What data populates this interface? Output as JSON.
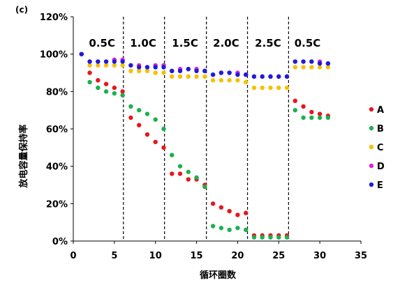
{
  "panel_label": "(c)",
  "chart_data": {
    "type": "scatter",
    "xlabel": "循环圈数",
    "ylabel": "放电容量保持率",
    "xlim": [
      0,
      35
    ],
    "ylim": [
      0,
      120
    ],
    "x_ticks": [
      "0",
      "5",
      "10",
      "15",
      "20",
      "25",
      "30",
      "35"
    ],
    "y_ticks": [
      "0%",
      "20%",
      "40%",
      "60%",
      "80%",
      "100%",
      "120%"
    ],
    "rate_dividers": [
      6.1,
      11.1,
      16.2,
      21.2,
      26.2
    ],
    "rate_labels": [
      {
        "text": "0.5C",
        "x": 3.5
      },
      {
        "text": "1.0C",
        "x": 8.5
      },
      {
        "text": "1.5C",
        "x": 13.6
      },
      {
        "text": "2.0C",
        "x": 18.6
      },
      {
        "text": "2.5C",
        "x": 23.7
      },
      {
        "text": "0.5C",
        "x": 28.5
      }
    ],
    "legend_position": "right",
    "series": [
      {
        "name": "A",
        "color": "#e8161b",
        "x": [
          1,
          2,
          3,
          4,
          5,
          6,
          7,
          8,
          9,
          10,
          11,
          12,
          13,
          14,
          15,
          16,
          17,
          18,
          19,
          20,
          21,
          22,
          23,
          24,
          25,
          26,
          27,
          28,
          29,
          30,
          31
        ],
        "y": [
          100,
          90,
          86,
          84,
          82,
          80,
          66,
          62,
          57,
          53,
          50,
          36,
          36,
          33,
          33,
          30,
          20,
          18,
          16,
          14,
          15,
          3,
          3,
          3,
          3,
          3,
          75,
          72,
          69,
          68,
          67
        ]
      },
      {
        "name": "B",
        "color": "#1ab14f",
        "x": [
          1,
          2,
          3,
          4,
          5,
          6,
          7,
          8,
          9,
          10,
          11,
          12,
          13,
          14,
          15,
          16,
          17,
          18,
          19,
          20,
          21,
          22,
          23,
          24,
          25,
          26,
          27,
          28,
          29,
          30,
          31
        ],
        "y": [
          100,
          85,
          82,
          80,
          79,
          78,
          72,
          70,
          68,
          65,
          60,
          46,
          40,
          37,
          34,
          29,
          8,
          7,
          6,
          7,
          6,
          2,
          2,
          2,
          2,
          2,
          70,
          66,
          66,
          66,
          66
        ]
      },
      {
        "name": "C",
        "color": "#f5c100",
        "x": [
          1,
          2,
          3,
          4,
          5,
          6,
          7,
          8,
          9,
          10,
          11,
          12,
          13,
          14,
          15,
          16,
          17,
          18,
          19,
          20,
          21,
          22,
          23,
          24,
          25,
          26,
          27,
          28,
          29,
          30,
          31
        ],
        "y": [
          100,
          94,
          94,
          94,
          94,
          94,
          91,
          91,
          91,
          90,
          90,
          88,
          88,
          88,
          88,
          88,
          86,
          86,
          86,
          86,
          85,
          82,
          82,
          82,
          82,
          82,
          93,
          93,
          93,
          93,
          93
        ]
      },
      {
        "name": "D",
        "color": "#e020d8",
        "x": [
          1,
          2,
          3,
          4,
          5,
          6,
          7,
          8,
          9,
          10,
          11,
          12,
          13,
          14,
          15,
          16,
          17,
          18,
          19,
          20,
          21,
          22,
          23,
          24,
          25,
          26,
          27,
          28,
          29,
          30,
          31
        ],
        "y": [
          100,
          96,
          96,
          96,
          97,
          97,
          94,
          94,
          93,
          94,
          94,
          91,
          92,
          92,
          92,
          91,
          89,
          90,
          90,
          90,
          89,
          88,
          88,
          88,
          88,
          88,
          96,
          96,
          96,
          96,
          95
        ]
      },
      {
        "name": "E",
        "color": "#1c1cdc",
        "x": [
          1,
          2,
          3,
          4,
          5,
          6,
          7,
          8,
          9,
          10,
          11,
          12,
          13,
          14,
          15,
          16,
          17,
          18,
          19,
          20,
          21,
          22,
          23,
          24,
          25,
          26,
          27,
          28,
          29,
          30,
          31
        ],
        "y": [
          100,
          96,
          96,
          96,
          96,
          96,
          94,
          93,
          93,
          93,
          93,
          91,
          91,
          92,
          91,
          91,
          89,
          90,
          90,
          89,
          89,
          88,
          88,
          88,
          88,
          88,
          96,
          96,
          96,
          95,
          95
        ]
      }
    ]
  }
}
